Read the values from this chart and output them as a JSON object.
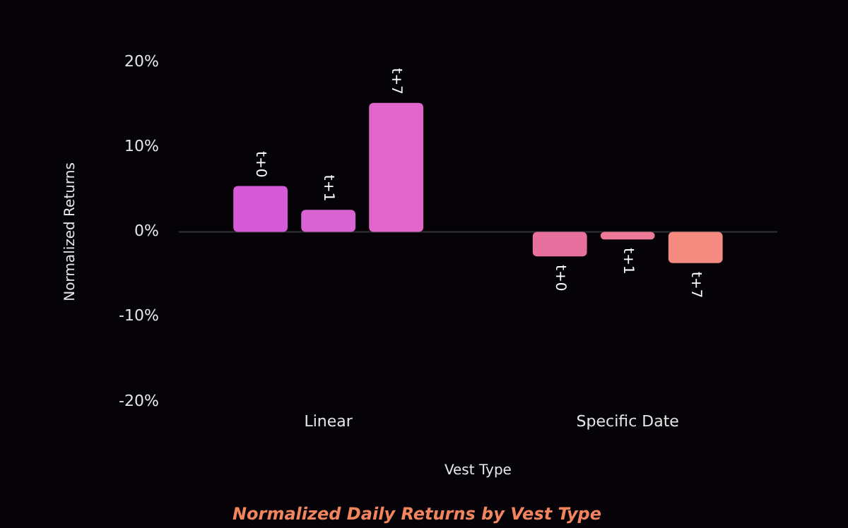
{
  "chart_data": {
    "type": "bar",
    "title": "Normalized Daily Returns by Vest Type",
    "xlabel": "Vest Type",
    "ylabel": "Normalized Returns",
    "categories": [
      "Linear",
      "Specific Date"
    ],
    "series": [
      {
        "name": "t+0",
        "colors": [
          "#d65ad8",
          "#e8709e"
        ],
        "values": [
          5.4,
          -2.9
        ]
      },
      {
        "name": "t+1",
        "colors": [
          "#d963d2",
          "#ee7a98"
        ],
        "values": [
          2.6,
          -0.9
        ]
      },
      {
        "name": "t+7",
        "colors": [
          "#e066cc",
          "#f58a80"
        ],
        "values": [
          15.2,
          -3.7
        ]
      }
    ],
    "ylim": [
      -20,
      20
    ],
    "yticks": [
      {
        "value": -20,
        "label": "-20%"
      },
      {
        "value": -10,
        "label": "-10%"
      },
      {
        "value": 0,
        "label": "0%"
      },
      {
        "value": 10,
        "label": "10%"
      },
      {
        "value": 20,
        "label": "20%"
      }
    ],
    "ref_lines": [
      {
        "axis": "y",
        "value": 0,
        "color": "#333333"
      }
    ],
    "grid": false,
    "legend": false
  }
}
